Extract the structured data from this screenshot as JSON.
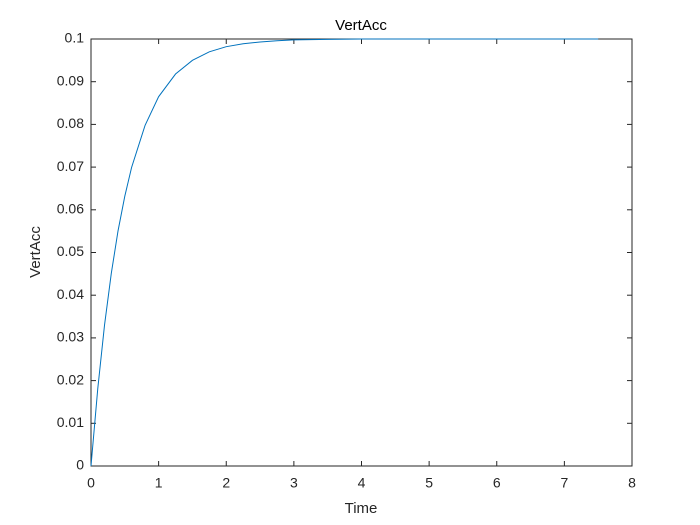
{
  "chart_data": {
    "type": "line",
    "title": "VertAcc",
    "x_label": "Time",
    "y_label": "VertAcc",
    "x": [
      0,
      0.1,
      0.2,
      0.3,
      0.4,
      0.5,
      0.6,
      0.8,
      1,
      1.25,
      1.5,
      1.75,
      2,
      2.25,
      2.5,
      2.75,
      3,
      3.5,
      4,
      5,
      6,
      7,
      7.5
    ],
    "series": [
      {
        "color": "#0072bd",
        "values": [
          0,
          0.0181,
          0.033,
          0.0451,
          0.0551,
          0.0632,
          0.0699,
          0.0798,
          0.0865,
          0.0918,
          0.095,
          0.097,
          0.0982,
          0.0989,
          0.0993,
          0.0996,
          0.0998,
          0.0999,
          0.1,
          0.1,
          0.1,
          0.1,
          0.1
        ]
      }
    ],
    "xlim": [
      0,
      8
    ],
    "xticks": [
      0,
      1,
      2,
      3,
      4,
      5,
      6,
      7,
      8
    ],
    "ylim": [
      0,
      0.1
    ],
    "yticks": [
      0,
      0.01,
      0.02,
      0.03,
      0.04,
      0.05,
      0.06,
      0.07,
      0.08,
      0.09,
      0.1
    ],
    "grid": false
  }
}
